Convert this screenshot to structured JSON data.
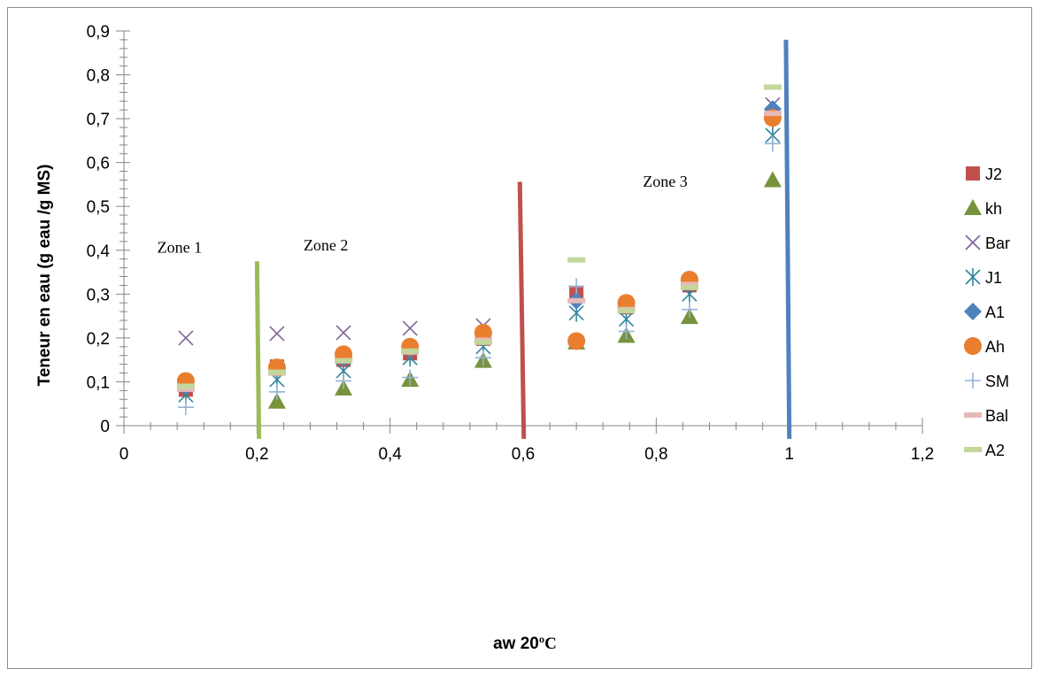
{
  "chart_data": {
    "type": "scatter",
    "xlabel": "aw 20",
    "xlabel_unit": "ºC",
    "ylabel": "Teneur en eau (g eau /g MS)",
    "xlim": [
      0,
      1.2
    ],
    "ylim": [
      0,
      0.9
    ],
    "x_ticks": [
      "0",
      "0,2",
      "0,4",
      "0,6",
      "0,8",
      "1",
      "1,2"
    ],
    "y_ticks": [
      "0",
      "0,1",
      "0,2",
      "0,3",
      "0,4",
      "0,5",
      "0,6",
      "0,7",
      "0,8",
      "0,9"
    ],
    "grid": false,
    "legend_position": "right",
    "series": [
      {
        "name": "J2",
        "marker": "square",
        "color": "#c0504d",
        "x": [
          0.093,
          0.23,
          0.33,
          0.43,
          0.54,
          0.68,
          0.755,
          0.85,
          0.975
        ],
        "y": [
          0.082,
          0.135,
          0.15,
          0.165,
          0.198,
          0.3,
          0.27,
          0.32,
          0.705
        ]
      },
      {
        "name": "kh",
        "marker": "triangle",
        "color": "#77933c",
        "x": [
          0.23,
          0.33,
          0.43,
          0.54,
          0.68,
          0.755,
          0.85,
          0.975
        ],
        "y": [
          0.055,
          0.085,
          0.105,
          0.148,
          0.19,
          0.205,
          0.248,
          0.56
        ]
      },
      {
        "name": "Bar",
        "marker": "x",
        "color": "#7f6598",
        "x": [
          0.093,
          0.23,
          0.33,
          0.43,
          0.54,
          0.975
        ],
        "y": [
          0.2,
          0.21,
          0.212,
          0.222,
          0.228,
          0.732
        ]
      },
      {
        "name": "J1",
        "marker": "asterisk",
        "color": "#31859c",
        "x": [
          0.093,
          0.23,
          0.33,
          0.43,
          0.54,
          0.68,
          0.755,
          0.85,
          0.975
        ],
        "y": [
          0.07,
          0.105,
          0.125,
          0.155,
          0.18,
          0.257,
          0.243,
          0.3,
          0.662
        ]
      },
      {
        "name": "A1",
        "marker": "diamond",
        "color": "#4f81bd",
        "x": [
          0.093,
          0.23,
          0.33,
          0.43,
          0.54,
          0.68,
          0.755,
          0.85,
          0.975
        ],
        "y": [
          0.09,
          0.13,
          0.155,
          0.172,
          0.2,
          0.285,
          0.272,
          0.33,
          0.722
        ]
      },
      {
        "name": "Ah",
        "marker": "circle",
        "color": "#e97e2f",
        "x": [
          0.093,
          0.23,
          0.33,
          0.43,
          0.54,
          0.68,
          0.755,
          0.85,
          0.975
        ],
        "y": [
          0.102,
          0.133,
          0.163,
          0.18,
          0.212,
          0.193,
          0.28,
          0.333,
          0.702
        ]
      },
      {
        "name": "SM",
        "marker": "plus",
        "color": "#95b3d7",
        "x": [
          0.093,
          0.23,
          0.33,
          0.43,
          0.54,
          0.68,
          0.755,
          0.85,
          0.975
        ],
        "y": [
          0.042,
          0.077,
          0.102,
          0.11,
          0.155,
          0.318,
          0.215,
          0.265,
          0.643
        ]
      },
      {
        "name": "Bal",
        "marker": "dash",
        "color": "#e6b9b8",
        "x": [
          0.093,
          0.23,
          0.33,
          0.43,
          0.54,
          0.68,
          0.755,
          0.85,
          0.975
        ],
        "y": [
          0.083,
          0.12,
          0.148,
          0.168,
          0.195,
          0.285,
          0.265,
          0.322,
          0.712
        ]
      },
      {
        "name": "A2",
        "marker": "dash",
        "color": "#c3d69b",
        "x": [
          0.093,
          0.23,
          0.33,
          0.43,
          0.54,
          0.68,
          0.755,
          0.85,
          0.975
        ],
        "y": [
          0.09,
          0.122,
          0.148,
          0.17,
          0.19,
          0.378,
          0.262,
          0.315,
          0.772
        ]
      }
    ],
    "boundary_lines": [
      {
        "color": "#9bbb59",
        "x_top": 0.2,
        "y_top": 0.375,
        "x_bottom": 0.203,
        "y_bottom": -0.03
      },
      {
        "color": "#c0504d",
        "x_top": 0.595,
        "y_top": 0.556,
        "x_bottom": 0.601,
        "y_bottom": -0.03
      },
      {
        "color": "#4f81bd",
        "x_top": 0.995,
        "y_top": 0.88,
        "x_bottom": 1.0,
        "y_bottom": -0.03
      }
    ],
    "annotations": [
      {
        "text": "Zone 1",
        "x": 0.05,
        "y": 0.395
      },
      {
        "text": "Zone 2",
        "x": 0.27,
        "y": 0.4
      },
      {
        "text": "Zone 3",
        "x": 0.78,
        "y": 0.545
      }
    ]
  }
}
